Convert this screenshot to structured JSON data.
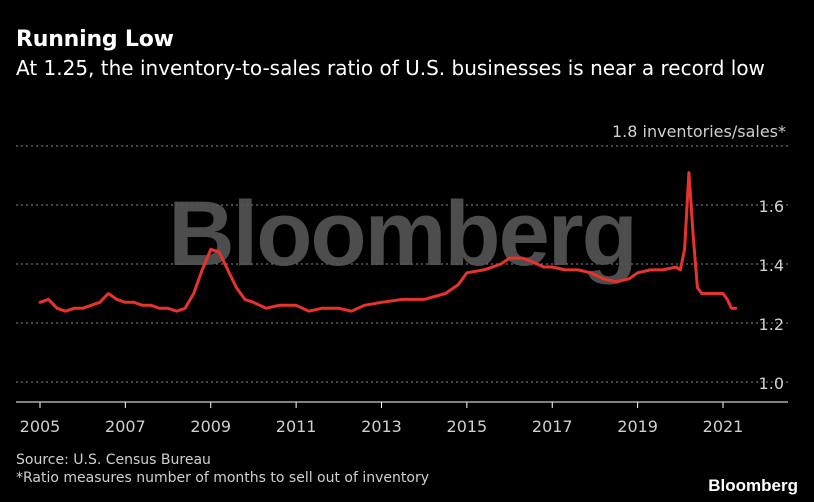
{
  "title": "Running Low",
  "subtitle": "At 1.25, the inventory-to-sales ratio of U.S. businesses is near a record low",
  "source": "Source: U.S. Census Bureau",
  "footnote": "*Ratio measures number of months to sell out of inventory",
  "brand": "Bloomberg",
  "watermark": "Bloomberg",
  "colors": {
    "background": "#000000",
    "line": "#e8322c",
    "grid": "#8a8a8a",
    "text": "#ffffff",
    "muted": "#cfcfcf",
    "watermark": "#555555"
  },
  "chart_data": {
    "type": "line",
    "title": "Running Low",
    "ylabel": "inventories/sales*",
    "top_tick_label": "1.8 inventories/sales*",
    "xlim": [
      2004.9,
      2022.2
    ],
    "ylim": [
      0.95,
      1.8
    ],
    "yticks": [
      1.0,
      1.2,
      1.4,
      1.6
    ],
    "ytick_labels": [
      "1.0",
      "1.2",
      "1.4",
      "1.6"
    ],
    "xticks": [
      2005,
      2007,
      2009,
      2011,
      2013,
      2015,
      2017,
      2019,
      2021
    ],
    "xtick_labels": [
      "2005",
      "2007",
      "2009",
      "2011",
      "2013",
      "2015",
      "2017",
      "2019",
      "2021"
    ],
    "grid": true,
    "series": [
      {
        "name": "Inventory-to-sales ratio",
        "x": [
          2005.0,
          2005.2,
          2005.4,
          2005.6,
          2005.8,
          2006.0,
          2006.2,
          2006.4,
          2006.6,
          2006.8,
          2007.0,
          2007.2,
          2007.4,
          2007.6,
          2007.8,
          2008.0,
          2008.2,
          2008.4,
          2008.6,
          2008.8,
          2009.0,
          2009.2,
          2009.4,
          2009.6,
          2009.8,
          2010.0,
          2010.3,
          2010.6,
          2011.0,
          2011.3,
          2011.6,
          2012.0,
          2012.3,
          2012.6,
          2013.0,
          2013.5,
          2014.0,
          2014.5,
          2014.8,
          2015.0,
          2015.4,
          2015.8,
          2016.0,
          2016.3,
          2016.5,
          2016.8,
          2017.0,
          2017.3,
          2017.6,
          2017.9,
          2018.2,
          2018.5,
          2018.8,
          2019.0,
          2019.3,
          2019.6,
          2019.9,
          2020.0,
          2020.1,
          2020.2,
          2020.3,
          2020.4,
          2020.5,
          2020.6,
          2020.8,
          2021.0,
          2021.1,
          2021.2,
          2021.3
        ],
        "values": [
          1.27,
          1.28,
          1.25,
          1.24,
          1.25,
          1.25,
          1.26,
          1.27,
          1.3,
          1.28,
          1.27,
          1.27,
          1.26,
          1.26,
          1.25,
          1.25,
          1.24,
          1.25,
          1.3,
          1.38,
          1.45,
          1.44,
          1.38,
          1.32,
          1.28,
          1.27,
          1.25,
          1.26,
          1.26,
          1.24,
          1.25,
          1.25,
          1.24,
          1.26,
          1.27,
          1.28,
          1.28,
          1.3,
          1.33,
          1.37,
          1.38,
          1.4,
          1.42,
          1.42,
          1.41,
          1.39,
          1.39,
          1.38,
          1.38,
          1.37,
          1.35,
          1.34,
          1.35,
          1.37,
          1.38,
          1.38,
          1.39,
          1.38,
          1.45,
          1.71,
          1.5,
          1.32,
          1.3,
          1.3,
          1.3,
          1.3,
          1.28,
          1.25,
          1.25
        ]
      }
    ]
  }
}
